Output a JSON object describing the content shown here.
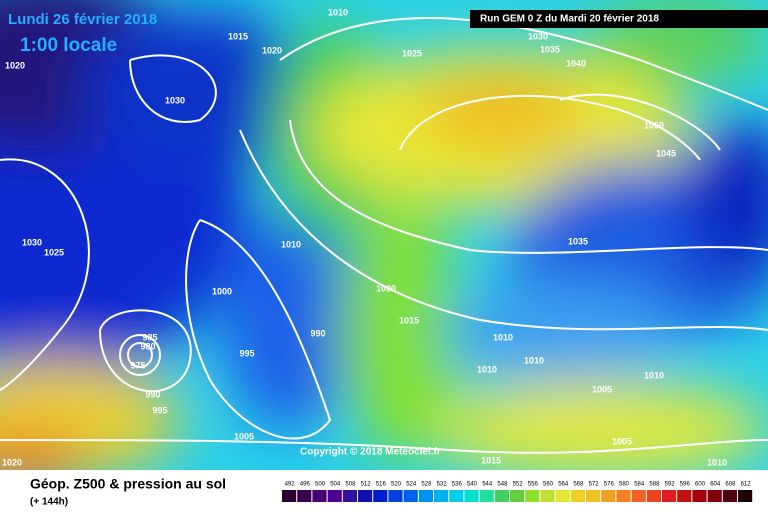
{
  "header": {
    "date": "Lundi 26 février 2018",
    "time": "1:00 locale",
    "run": "Run GEM 0 Z du Mardi 20 février 2018"
  },
  "isobar_labels": [
    "1010",
    "1015",
    "1020",
    "1020",
    "1025",
    "1030",
    "1035",
    "1040",
    "1030",
    "1050",
    "1045",
    "1030",
    "1025",
    "1010",
    "1035",
    "1000",
    "1020",
    "990",
    "1015",
    "985",
    "980",
    "975",
    "995",
    "1010",
    "1010",
    "1010",
    "1010",
    "990",
    "995",
    "1005",
    "1005",
    "1005",
    "1015",
    "1010",
    "1020"
  ],
  "copyright": "Copyright © 2018 Meteociel.fr",
  "legend": {
    "title": "Géop. Z500 & pression au sol",
    "subtitle": "(+ 144h)",
    "levels": [
      492,
      496,
      500,
      504,
      508,
      512,
      516,
      520,
      524,
      528,
      532,
      536,
      540,
      544,
      548,
      552,
      556,
      560,
      564,
      568,
      572,
      576,
      580,
      584,
      588,
      592,
      596,
      600,
      604,
      608,
      612
    ]
  }
}
